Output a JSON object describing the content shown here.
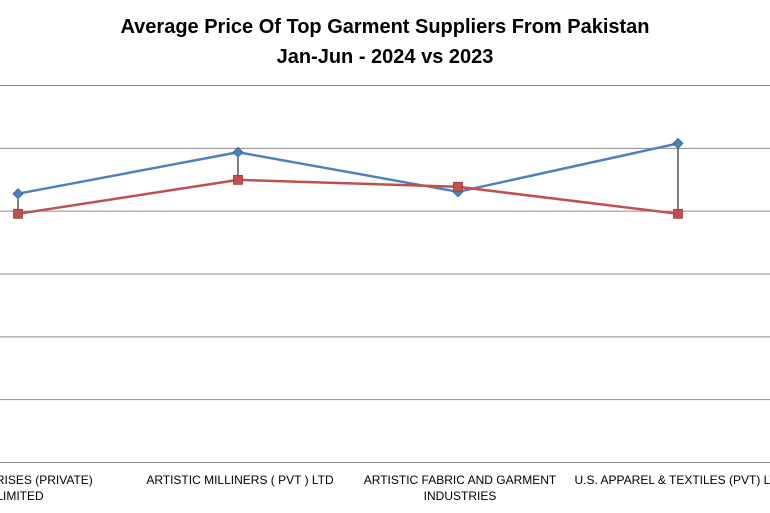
{
  "chart_data": {
    "type": "line",
    "title": "Average Price Of Top Garment Suppliers From Pakistan",
    "subtitle": "Jan-Jun - 2024 vs 2023",
    "xlabel": "",
    "ylabel": "",
    "categories": [
      [
        "ENTERPRISES (PRIVATE)",
        "LIMITED"
      ],
      [
        "ARTISTIC MILLINERS ( PVT ) LTD"
      ],
      [
        "ARTISTIC FABRIC AND GARMENT",
        "INDUSTRIES"
      ],
      [
        "U.S. APPAREL & TEXTILES (PVT) LTD"
      ]
    ],
    "ylim": [
      0,
      6
    ],
    "series": [
      {
        "color": "#4f81bd",
        "marker": "diamond",
        "values": [
          4.27,
          4.93,
          4.3,
          5.07
        ]
      },
      {
        "color": "#c0504d",
        "marker": "square",
        "values": [
          3.95,
          4.49,
          4.38,
          3.95
        ]
      }
    ],
    "grid": true,
    "legend": "none",
    "high_low_lines": true
  }
}
